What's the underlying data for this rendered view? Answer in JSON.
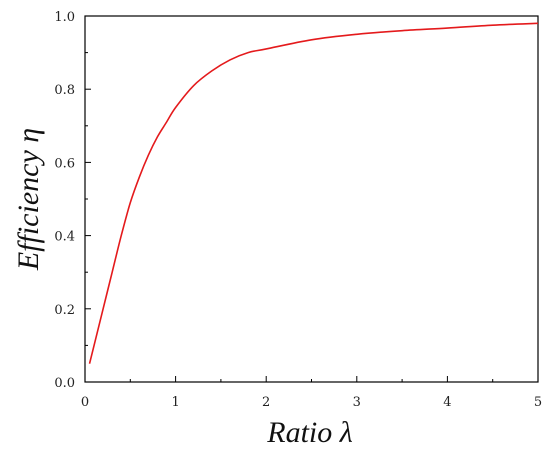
{
  "chart_data": {
    "type": "line",
    "xlabel": "Ratio λ",
    "ylabel": "Efficiency η",
    "xlim": [
      0,
      5
    ],
    "ylim": [
      0,
      1
    ],
    "xticks": [
      "0",
      "1",
      "2",
      "3",
      "4",
      "5"
    ],
    "yticks": [
      "0.0",
      "0.2",
      "0.4",
      "0.6",
      "0.8",
      "1.0"
    ],
    "grid": false,
    "series": [
      {
        "color": "#e41a1c",
        "x": [
          0.05,
          0.1,
          0.2,
          0.3,
          0.4,
          0.5,
          0.6,
          0.7,
          0.8,
          0.9,
          1.0,
          1.2,
          1.4,
          1.6,
          1.8,
          2.0,
          2.5,
          3.0,
          3.5,
          4.0,
          4.5,
          5.0
        ],
        "y": [
          0.05,
          0.1,
          0.2,
          0.3,
          0.4,
          0.49,
          0.56,
          0.62,
          0.67,
          0.71,
          0.75,
          0.81,
          0.85,
          0.88,
          0.9,
          0.91,
          0.935,
          0.95,
          0.96,
          0.967,
          0.975,
          0.98
        ]
      }
    ]
  }
}
